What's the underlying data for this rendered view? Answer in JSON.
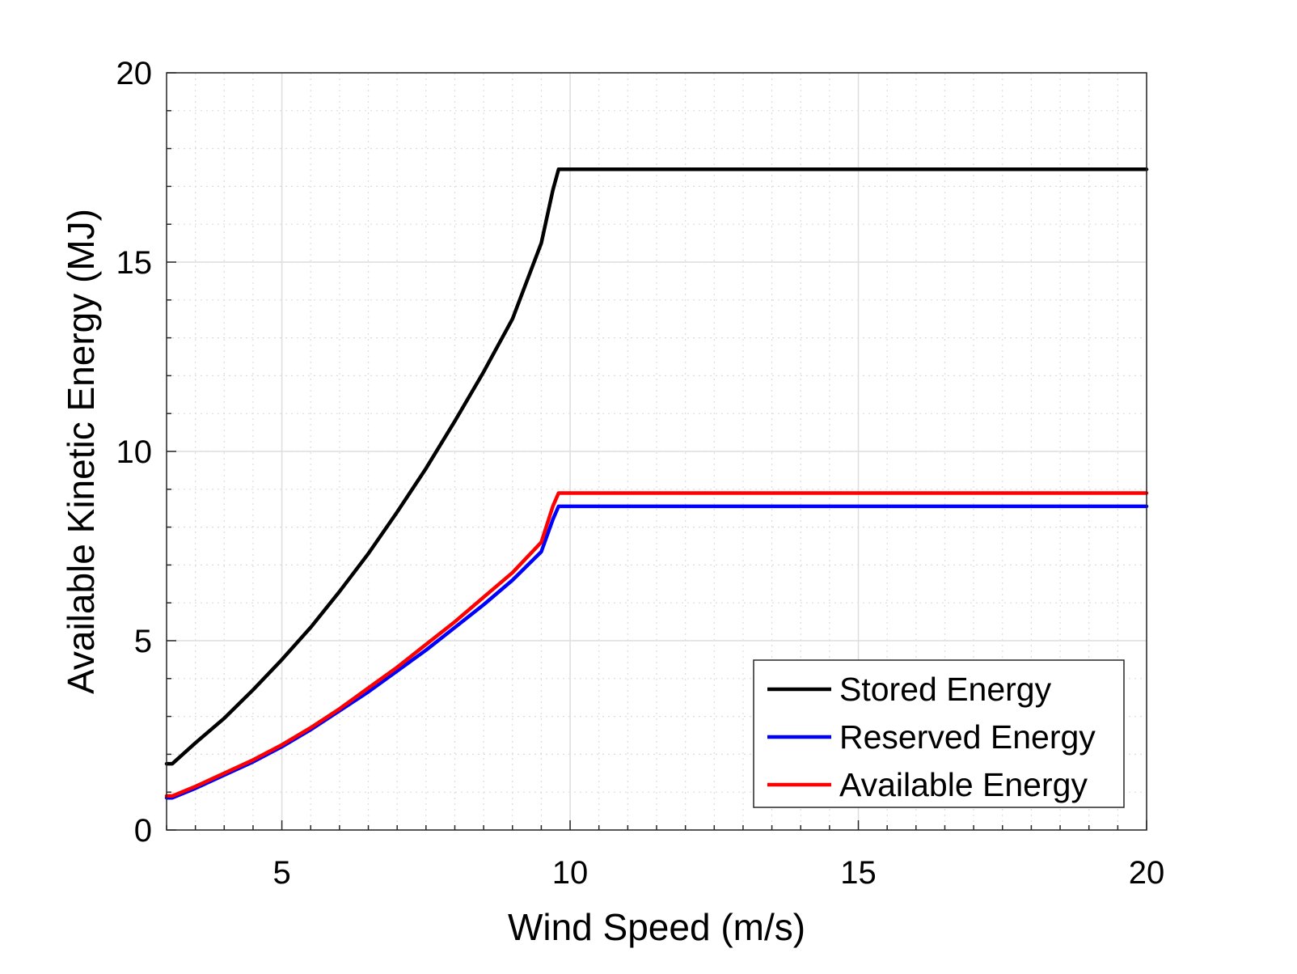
{
  "chart_data": {
    "type": "line",
    "title": "",
    "xlabel": "Wind Speed (m/s)",
    "ylabel": "Available Kinetic Energy (MJ)",
    "xlim": [
      3,
      20
    ],
    "ylim": [
      0,
      20
    ],
    "xticks": [
      5,
      10,
      15,
      20
    ],
    "yticks": [
      0,
      5,
      10,
      15,
      20
    ],
    "grid": true,
    "minor_grid": true,
    "legend_position": "bottom-right",
    "series": [
      {
        "name": "Stored Energy",
        "color": "#000000",
        "x": [
          3,
          3.1,
          3.5,
          4,
          4.5,
          5,
          5.5,
          6,
          6.5,
          7,
          7.5,
          8,
          8.5,
          9,
          9.5,
          9.7,
          9.8,
          10,
          12,
          14,
          16,
          18,
          20
        ],
        "y": [
          1.75,
          1.75,
          2.3,
          2.95,
          3.7,
          4.5,
          5.35,
          6.3,
          7.3,
          8.4,
          9.55,
          10.8,
          12.1,
          13.5,
          15.5,
          16.9,
          17.45,
          17.45,
          17.45,
          17.45,
          17.45,
          17.45,
          17.45
        ]
      },
      {
        "name": "Reserved Energy",
        "color": "#0000ff",
        "x": [
          3,
          3.1,
          3.5,
          4,
          4.5,
          5,
          5.5,
          6,
          6.5,
          7,
          7.5,
          8,
          8.5,
          9,
          9.5,
          9.7,
          9.8,
          10,
          12,
          14,
          16,
          18,
          20
        ],
        "y": [
          0.85,
          0.85,
          1.1,
          1.45,
          1.8,
          2.2,
          2.65,
          3.15,
          3.65,
          4.2,
          4.75,
          5.35,
          5.95,
          6.6,
          7.35,
          8.2,
          8.55,
          8.55,
          8.55,
          8.55,
          8.55,
          8.55,
          8.55
        ]
      },
      {
        "name": "Available Energy",
        "color": "#ff0000",
        "x": [
          3,
          3.1,
          3.5,
          4,
          4.5,
          5,
          5.5,
          6,
          6.5,
          7,
          7.5,
          8,
          8.5,
          9,
          9.5,
          9.7,
          9.8,
          10,
          12,
          14,
          16,
          18,
          20
        ],
        "y": [
          0.9,
          0.9,
          1.15,
          1.5,
          1.85,
          2.25,
          2.7,
          3.2,
          3.75,
          4.3,
          4.9,
          5.5,
          6.15,
          6.8,
          7.6,
          8.55,
          8.9,
          8.9,
          8.9,
          8.9,
          8.9,
          8.9,
          8.9
        ]
      }
    ]
  }
}
